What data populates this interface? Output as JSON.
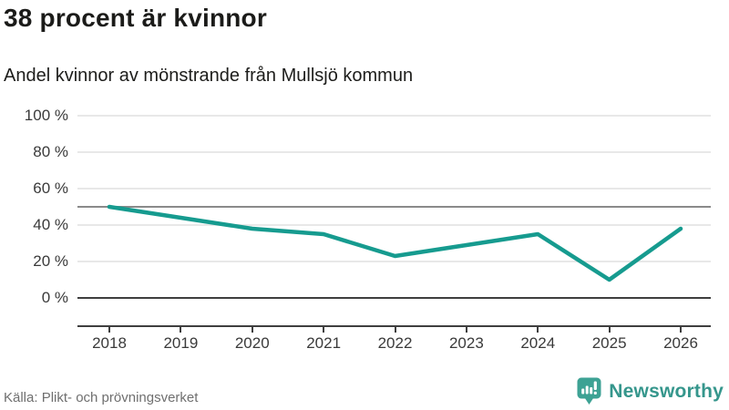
{
  "chart_data": {
    "type": "line",
    "title": "38 procent är kvinnor",
    "subtitle": "Andel kvinnor av mönstrande från Mullsjö kommun",
    "categories": [
      2018,
      2019,
      2020,
      2021,
      2022,
      2023,
      2024,
      2025,
      2026
    ],
    "series": [
      {
        "name": "Andel kvinnor av mönstrande",
        "values": [
          50,
          44,
          38,
          35,
          23,
          29,
          35,
          10,
          38
        ]
      }
    ],
    "unit": "%",
    "ylim": [
      0,
      100
    ],
    "y_tick_step": 20,
    "y_tick_suffix": " %",
    "reference_line_y": 50,
    "grid": true,
    "legend_position": "none",
    "line_color": "#169b8f",
    "xlabel": "",
    "ylabel": ""
  },
  "footer": {
    "source": "Källa: Plikt- och prövningsverket",
    "logo_text": "Newsworthy",
    "logo_color": "#3da294"
  }
}
